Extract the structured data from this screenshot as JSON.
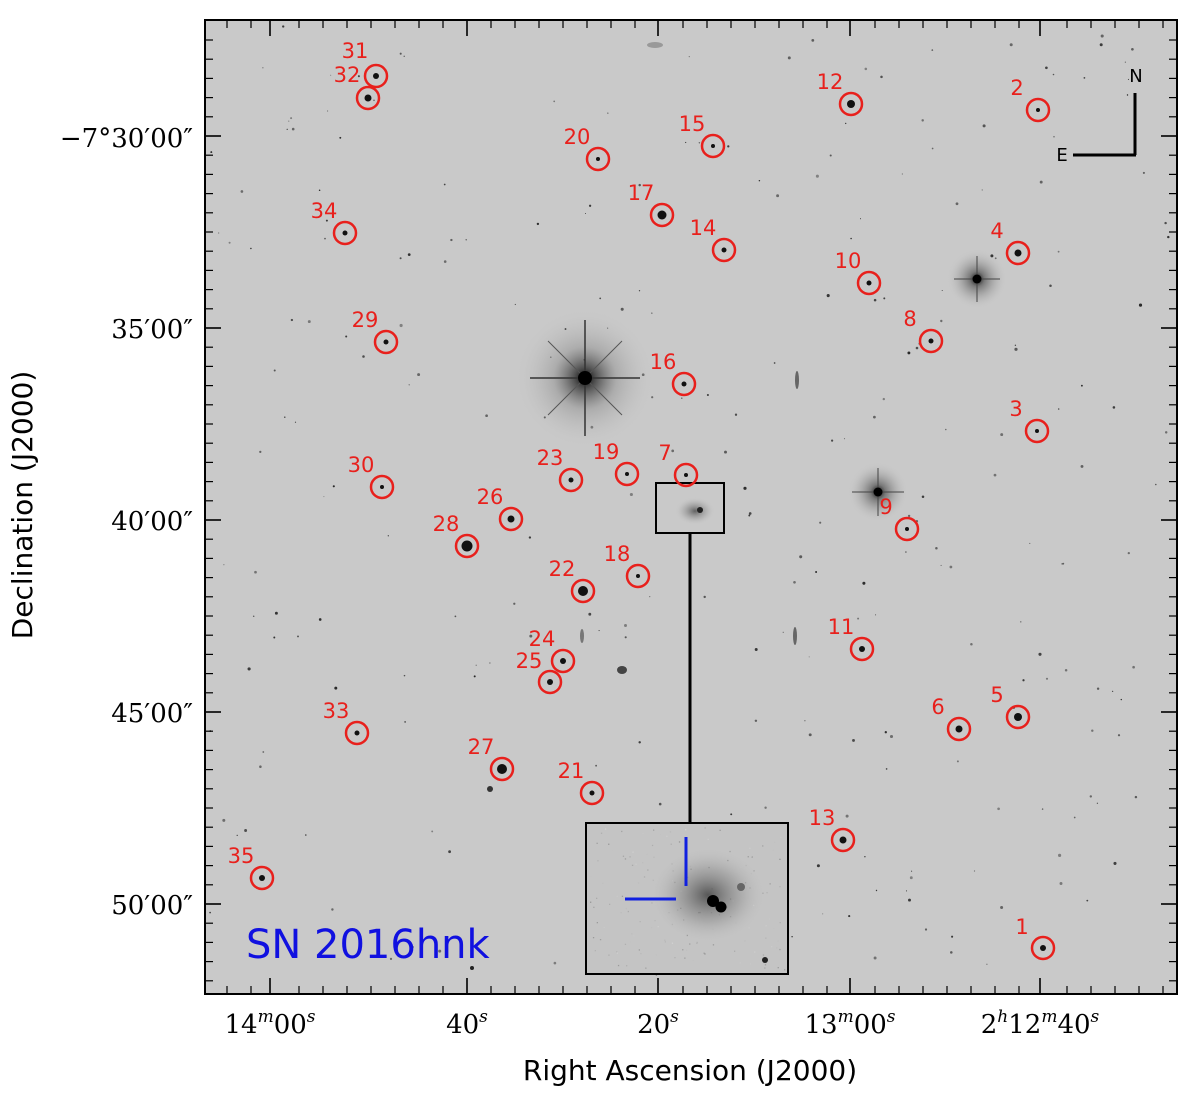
{
  "figure": {
    "xlabel": "Right Ascension (J2000)",
    "ylabel": "Declination (J2000)",
    "sn_label": "SN 2016hnk",
    "compass": {
      "north": "N",
      "east": "E"
    },
    "ra_ticks": [
      {
        "value": "14ᵐ 00ˢ",
        "main": "14",
        "unit1": "m",
        "sec": "00",
        "unit2": "s"
      },
      {
        "value": "40ˢ",
        "main": "40",
        "unit2": "s"
      },
      {
        "value": "20ˢ",
        "main": "20",
        "unit2": "s"
      },
      {
        "value": "13ᵐ 00ˢ",
        "main": "13",
        "unit1": "m",
        "sec": "00",
        "unit2": "s"
      },
      {
        "value": "2ʰ 12ᵐ 40ˢ",
        "pre": "2",
        "unit0": "h",
        "main": "12",
        "unit1": "m",
        "sec": "40",
        "unit2": "s"
      }
    ],
    "dec_ticks": [
      "−7°30′00″",
      "35′00″",
      "40′00″",
      "45′00″",
      "50′00″"
    ],
    "colors": {
      "marker": "#e8201c",
      "sn_label": "#1010e0",
      "inset_cross": "#1020e0",
      "image_bg": "#c9c9c9",
      "frame": "#000000"
    },
    "markers": [
      {
        "id": "1"
      },
      {
        "id": "2"
      },
      {
        "id": "3"
      },
      {
        "id": "4"
      },
      {
        "id": "5"
      },
      {
        "id": "6"
      },
      {
        "id": "7"
      },
      {
        "id": "8"
      },
      {
        "id": "9"
      },
      {
        "id": "10"
      },
      {
        "id": "11"
      },
      {
        "id": "12"
      },
      {
        "id": "13"
      },
      {
        "id": "14"
      },
      {
        "id": "15"
      },
      {
        "id": "16"
      },
      {
        "id": "17"
      },
      {
        "id": "18"
      },
      {
        "id": "19"
      },
      {
        "id": "20"
      },
      {
        "id": "21"
      },
      {
        "id": "22"
      },
      {
        "id": "23"
      },
      {
        "id": "24"
      },
      {
        "id": "25"
      },
      {
        "id": "26"
      },
      {
        "id": "27"
      },
      {
        "id": "28"
      },
      {
        "id": "29"
      },
      {
        "id": "30"
      },
      {
        "id": "31"
      },
      {
        "id": "32"
      },
      {
        "id": "33"
      },
      {
        "id": "34"
      },
      {
        "id": "35"
      }
    ]
  }
}
